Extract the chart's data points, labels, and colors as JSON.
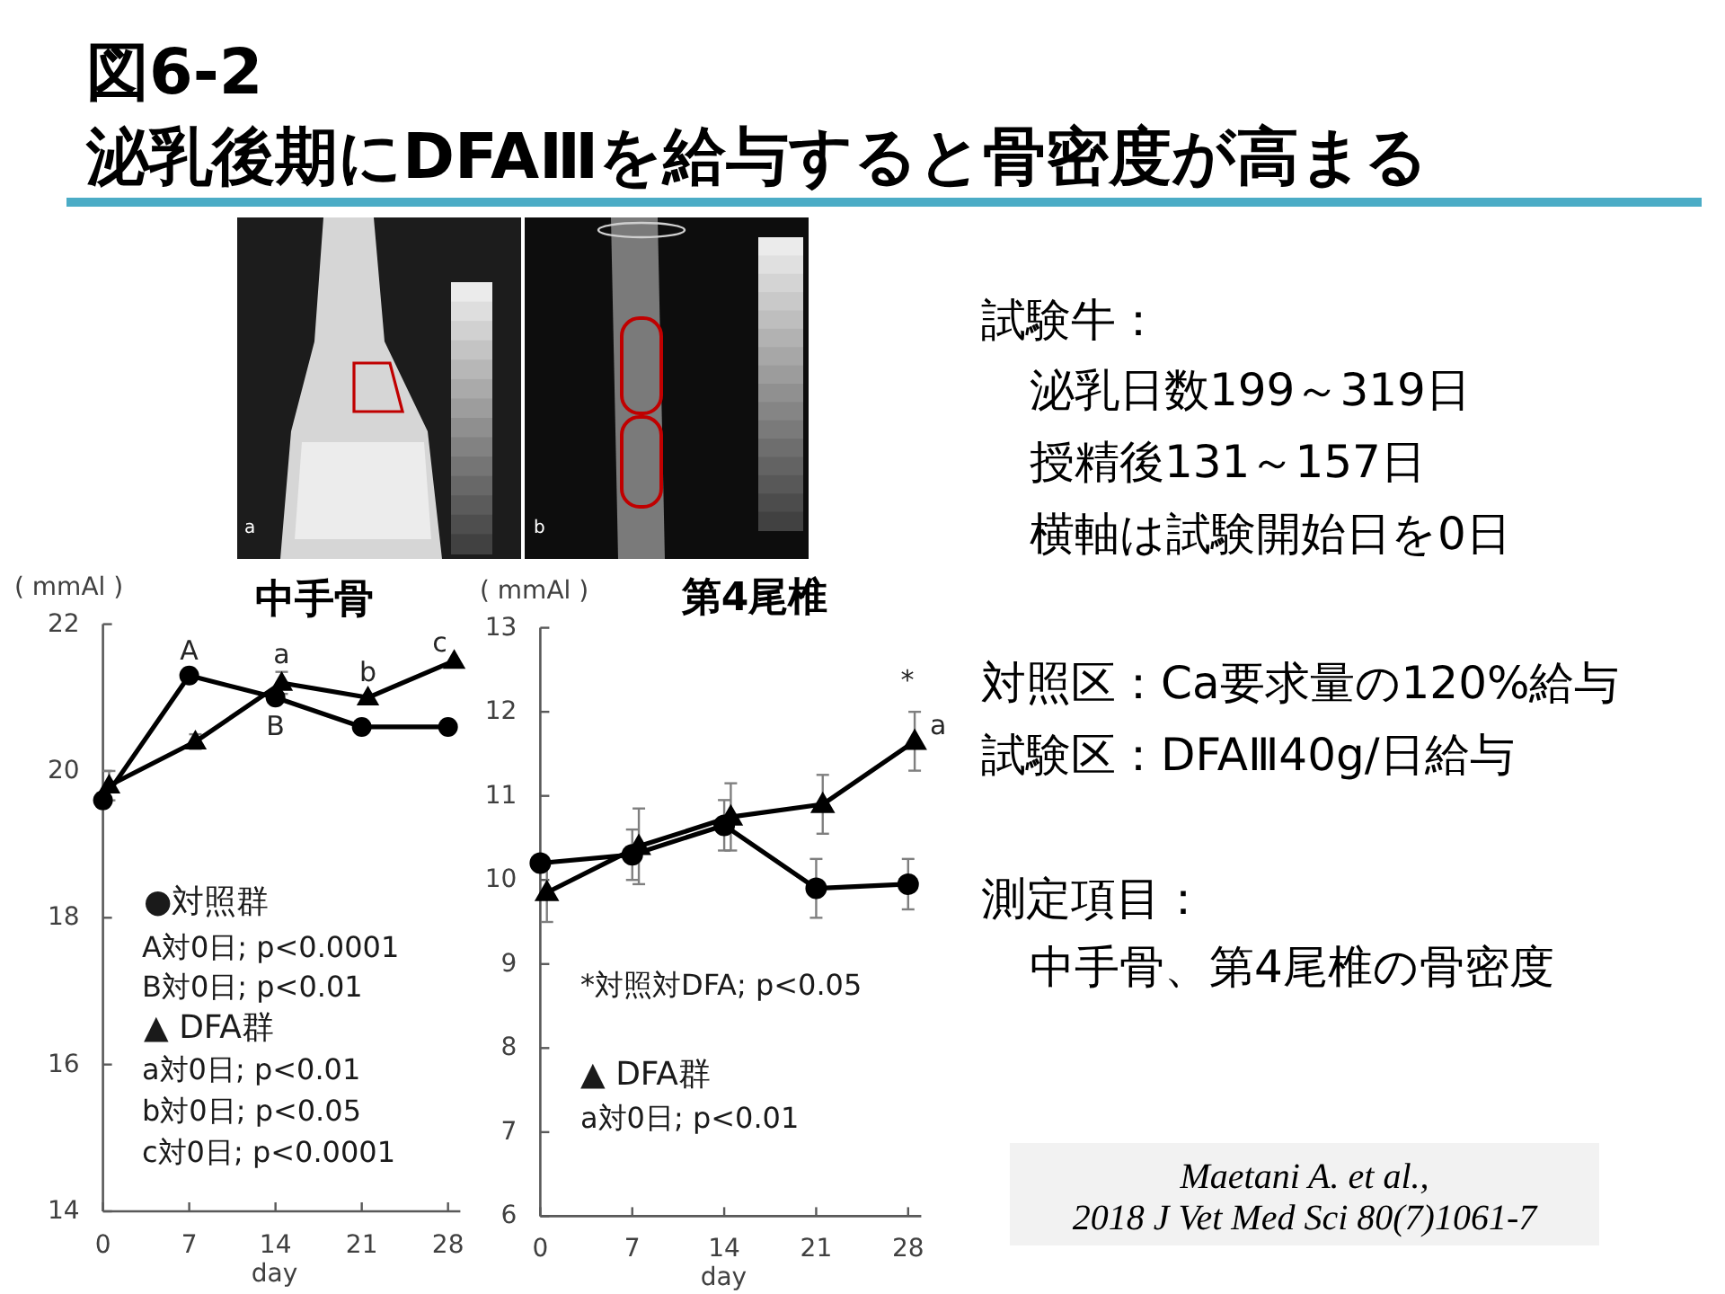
{
  "chart_data": [
    {
      "type": "other",
      "title": "図6-2",
      "subtitle": "泌乳後期にDFAⅢを給与すると骨密度が高まる",
      "annotations": [
        "a",
        "b",
        "試験牛：",
        "泌乳日数199～319日",
        "授精後131～157日",
        "横軸は試験開始日を0日",
        "対照区：Ca要求量の120%給与",
        "試験区：DFAⅢ40g/日給与",
        "測定項目：",
        "中手骨、第4尾椎の骨密度",
        "Maetani A. et al.,",
        "2018 J Vet Med Sci 80(7)1061-7"
      ]
    },
    {
      "type": "line",
      "title": "中手骨",
      "xlabel": "day",
      "ylabel": "( mmAl )",
      "xlim": [
        0,
        29
      ],
      "ylim": [
        14,
        22
      ],
      "xticks": [
        0,
        7,
        14,
        21,
        28
      ],
      "yticks": [
        14,
        16,
        18,
        20,
        22
      ],
      "line_style": "solid",
      "series": [
        {
          "color": "#000000",
          "marker": "circle",
          "x": [
            0,
            7,
            14,
            21,
            28
          ],
          "values": [
            19.6,
            21.3,
            21.0,
            20.6,
            20.6
          ]
        },
        {
          "color": "#000000",
          "marker": "triangle",
          "x": [
            0.5,
            7.5,
            14.5,
            21.5,
            28.5
          ],
          "values": [
            19.8,
            20.4,
            21.2,
            21.0,
            21.5
          ],
          "errors": [
            0.2,
            0.1,
            0.15,
            null,
            null
          ]
        }
      ],
      "annotations": [
        {
          "text": "A",
          "x": 7,
          "y": 21.3
        },
        {
          "text": "B",
          "x": 14,
          "y": 21.0
        },
        {
          "text": "a",
          "x": 14.5,
          "y": 21.2
        },
        {
          "text": "b",
          "x": 21.5,
          "y": 21.0
        },
        {
          "text": "c",
          "x": 28.5,
          "y": 21.5
        },
        "●対照群",
        "A対0日; p<0.0001",
        "B対0日; p<0.01",
        "▲ DFA群",
        "a対0日; p<0.01",
        "b対0日; p<0.05",
        "c対0日; p<0.0001"
      ]
    },
    {
      "type": "line",
      "title": "第4尾椎",
      "xlabel": "day",
      "ylabel": "( mmAl )",
      "xlim": [
        0,
        29
      ],
      "ylim": [
        6,
        13
      ],
      "xticks": [
        0,
        7,
        14,
        21,
        28
      ],
      "yticks": [
        6,
        7,
        8,
        9,
        10,
        11,
        12,
        13
      ],
      "line_style": "solid",
      "series": [
        {
          "color": "#000000",
          "marker": "circle",
          "x": [
            0,
            7,
            14,
            21,
            28
          ],
          "values": [
            10.2,
            10.3,
            10.65,
            9.9,
            9.95
          ],
          "errors": [
            null,
            0.3,
            0.3,
            0.35,
            0.3
          ]
        },
        {
          "color": "#000000",
          "marker": "triangle",
          "x": [
            0.5,
            7.5,
            14.5,
            21.5,
            28.5
          ],
          "values": [
            9.85,
            10.4,
            10.75,
            10.9,
            11.65
          ],
          "errors": [
            0.35,
            0.45,
            0.4,
            0.35,
            0.35
          ]
        }
      ],
      "annotations": [
        {
          "text": "*",
          "x": 28.5,
          "y": 11.65
        },
        {
          "text": "a",
          "x": 28.5,
          "y": 11.65
        },
        "*対照対DFA; p<0.05",
        "▲ DFA群",
        "a対0日; p<0.01"
      ]
    }
  ]
}
